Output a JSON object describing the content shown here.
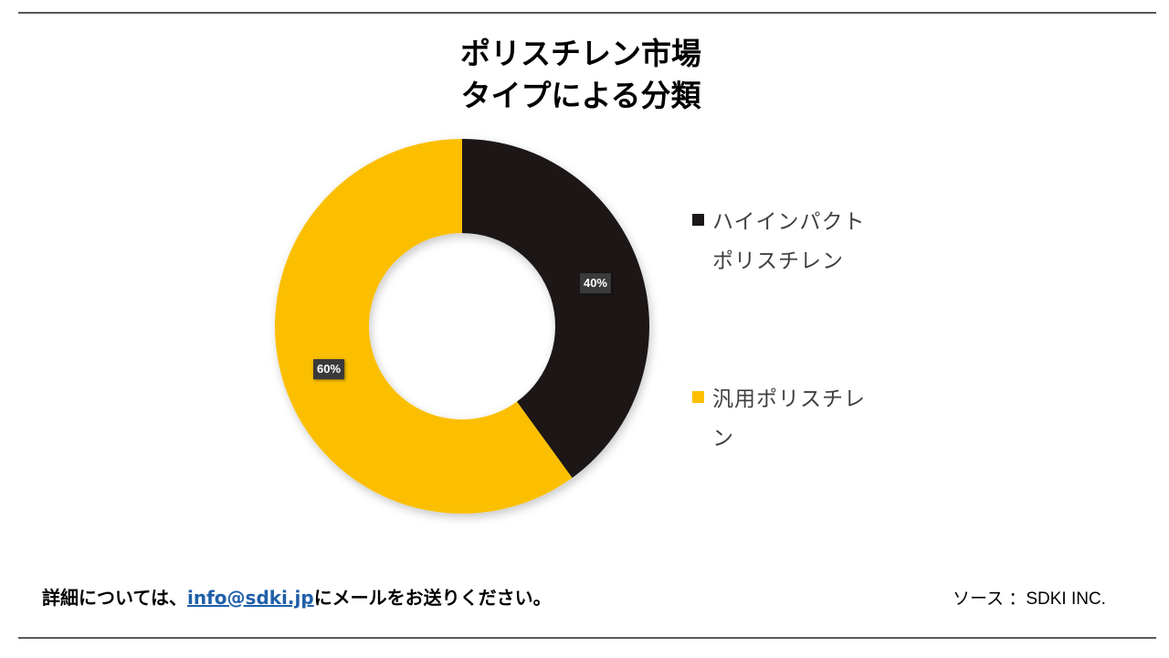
{
  "header": {
    "title_line1": "ポリスチレン市場",
    "title_line2": "タイプによる分類"
  },
  "chart_data": {
    "type": "pie",
    "subtype": "donut",
    "categories": [
      "ハイインパクトポリスチレン",
      "汎用ポリスチレン"
    ],
    "values": [
      40,
      60
    ],
    "data_labels": [
      "40%",
      "60%"
    ],
    "colors": [
      "#1a1818",
      "#fbbf00"
    ],
    "legend": {
      "placement": "right",
      "entries": [
        {
          "line1": "ハイインパクト",
          "line2": "ポリスチレン",
          "color": "#1a1818"
        },
        {
          "line1": "汎用ポリスチレ",
          "line2": "ン",
          "color": "#fbbf00"
        }
      ]
    }
  },
  "footer": {
    "contact_prefix": "詳細については、",
    "contact_email": "info@sdki.jp",
    "contact_suffix": "にメールをお送りください。",
    "source": "ソース ：SDKI INC."
  }
}
